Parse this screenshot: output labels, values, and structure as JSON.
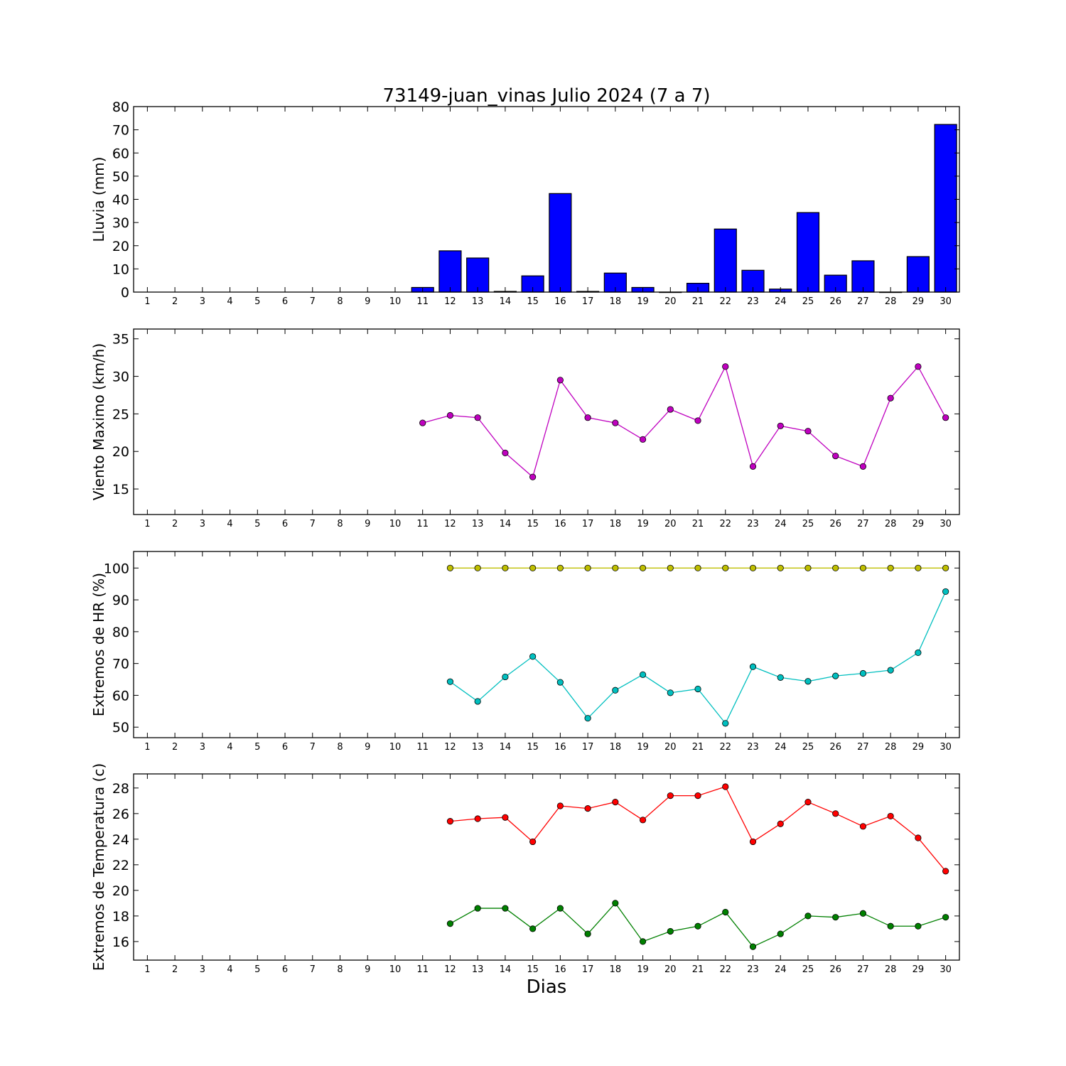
{
  "title": "73149-juan_vinas Julio 2024  (7 a 7)",
  "xlabel": "Dias",
  "colors": {
    "rain": "#0000ff",
    "wind": "#bf00bf",
    "hr_max": "#bfbf00",
    "hr_min": "#00bfbf",
    "temp_max": "#ff0000",
    "temp_min": "#008000"
  },
  "chart_data": [
    {
      "type": "bar",
      "ylabel": "Lluvia (mm)",
      "ylim": [
        0,
        80
      ],
      "yticks": [
        0,
        10,
        20,
        30,
        40,
        50,
        60,
        70,
        80
      ],
      "xlim": [
        0.5,
        30.5
      ],
      "xticks": [
        1,
        2,
        3,
        4,
        5,
        6,
        7,
        8,
        9,
        10,
        11,
        12,
        13,
        14,
        15,
        16,
        17,
        18,
        19,
        20,
        21,
        22,
        23,
        24,
        25,
        26,
        27,
        28,
        29,
        30
      ],
      "series": [
        {
          "x": [
            11,
            12,
            13,
            14,
            15,
            16,
            17,
            18,
            19,
            20,
            21,
            22,
            23,
            24,
            25,
            26,
            27,
            28,
            29,
            30
          ],
          "values": [
            2.0,
            17.8,
            14.7,
            0.3,
            7.0,
            42.5,
            0.3,
            8.2,
            2.0,
            0.0,
            3.8,
            27.2,
            9.4,
            1.3,
            34.3,
            7.3,
            13.5,
            0.0,
            15.3,
            72.3
          ],
          "color": "#0000ff"
        }
      ]
    },
    {
      "type": "line",
      "ylabel": "Viento Maximo (km/h)",
      "ylim": [
        11.6,
        36.3
      ],
      "yticks": [
        15,
        20,
        25,
        30,
        35
      ],
      "xlim": [
        0.5,
        30.5
      ],
      "xticks": [
        1,
        2,
        3,
        4,
        5,
        6,
        7,
        8,
        9,
        10,
        11,
        12,
        13,
        14,
        15,
        16,
        17,
        18,
        19,
        20,
        21,
        22,
        23,
        24,
        25,
        26,
        27,
        28,
        29,
        30
      ],
      "series": [
        {
          "x": [
            11,
            12,
            13,
            14,
            15,
            16,
            17,
            18,
            19,
            20,
            21,
            22,
            23,
            24,
            25,
            26,
            27,
            28,
            29,
            30
          ],
          "values": [
            23.8,
            24.8,
            24.5,
            19.8,
            16.6,
            29.5,
            24.5,
            23.8,
            21.6,
            25.6,
            24.1,
            31.3,
            18.0,
            23.4,
            22.7,
            19.4,
            18.0,
            27.1,
            31.3,
            24.5
          ],
          "color": "#bf00bf"
        }
      ]
    },
    {
      "type": "line",
      "ylabel": "Extremos de HR (%)",
      "ylim": [
        46.7,
        105.2
      ],
      "yticks": [
        50,
        60,
        70,
        80,
        90,
        100
      ],
      "xlim": [
        0.5,
        30.5
      ],
      "xticks": [
        1,
        2,
        3,
        4,
        5,
        6,
        7,
        8,
        9,
        10,
        11,
        12,
        13,
        14,
        15,
        16,
        17,
        18,
        19,
        20,
        21,
        22,
        23,
        24,
        25,
        26,
        27,
        28,
        29,
        30
      ],
      "series": [
        {
          "x": [
            12,
            13,
            14,
            15,
            16,
            17,
            18,
            19,
            20,
            21,
            22,
            23,
            24,
            25,
            26,
            27,
            28,
            29,
            30
          ],
          "values": [
            100,
            100,
            100,
            100,
            100,
            100,
            100,
            100,
            100,
            100,
            100,
            100,
            100,
            100,
            100,
            100,
            100,
            100,
            100
          ],
          "color": "#bfbf00"
        },
        {
          "x": [
            12,
            13,
            14,
            15,
            16,
            17,
            18,
            19,
            20,
            21,
            22,
            23,
            24,
            25,
            26,
            27,
            28,
            29,
            30
          ],
          "values": [
            64.3,
            58.1,
            65.8,
            72.2,
            64.1,
            52.8,
            61.6,
            66.5,
            60.8,
            62.0,
            51.2,
            69.0,
            65.6,
            64.4,
            66.1,
            66.9,
            67.9,
            73.4,
            92.6
          ],
          "color": "#00bfbf"
        }
      ]
    },
    {
      "type": "line",
      "ylabel": "Extremos de Temperatura (c)",
      "ylim": [
        14.55,
        29.1
      ],
      "yticks": [
        16,
        18,
        20,
        22,
        24,
        26,
        28
      ],
      "xlim": [
        0.5,
        30.5
      ],
      "xticks": [
        1,
        2,
        3,
        4,
        5,
        6,
        7,
        8,
        9,
        10,
        11,
        12,
        13,
        14,
        15,
        16,
        17,
        18,
        19,
        20,
        21,
        22,
        23,
        24,
        25,
        26,
        27,
        28,
        29,
        30
      ],
      "series": [
        {
          "x": [
            12,
            13,
            14,
            15,
            16,
            17,
            18,
            19,
            20,
            21,
            22,
            23,
            24,
            25,
            26,
            27,
            28,
            29,
            30
          ],
          "values": [
            25.4,
            25.6,
            25.7,
            23.8,
            26.6,
            26.4,
            26.9,
            25.5,
            27.4,
            27.4,
            28.1,
            23.8,
            25.2,
            26.9,
            26.0,
            25.0,
            25.8,
            24.1,
            21.5
          ],
          "color": "#ff0000"
        },
        {
          "x": [
            12,
            13,
            14,
            15,
            16,
            17,
            18,
            19,
            20,
            21,
            22,
            23,
            24,
            25,
            26,
            27,
            28,
            29,
            30
          ],
          "values": [
            17.4,
            18.6,
            18.6,
            17.0,
            18.6,
            16.6,
            19.0,
            16.0,
            16.8,
            17.2,
            18.3,
            15.6,
            16.6,
            18.0,
            17.9,
            18.2,
            17.2,
            17.2,
            17.9
          ],
          "color": "#008000"
        }
      ]
    }
  ]
}
